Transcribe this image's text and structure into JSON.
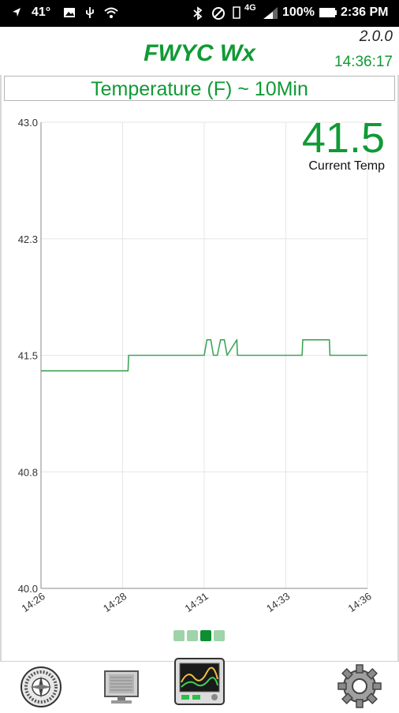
{
  "status_bar": {
    "temperature": "41°",
    "battery_percent": "100%",
    "time": "2:36 PM",
    "network": "4G"
  },
  "header": {
    "title": "FWYC Wx",
    "version": "2.0.0",
    "clock": "14:36:17"
  },
  "chart_header": {
    "title": "Temperature (F) ~ 10Min"
  },
  "current": {
    "value": "41.5",
    "label": "Current Temp"
  },
  "colors": {
    "accent": "#109a35",
    "line": "#3fa55a",
    "grid": "#e6e6e6"
  },
  "chart_data": {
    "type": "line",
    "title": "Temperature (F) ~ 10Min",
    "xlabel": "",
    "ylabel": "",
    "y_ticks": [
      "43.0",
      "42.3",
      "41.5",
      "40.8",
      "40.0"
    ],
    "ylim": [
      40.0,
      43.0
    ],
    "x_ticks": [
      "14:26",
      "14:28",
      "14:31",
      "14:33",
      "14:36"
    ],
    "xlim": [
      "14:26",
      "14:36"
    ],
    "grid": true,
    "series": [
      {
        "x": [
          "14:26:00",
          "14:28:40",
          "14:28:41",
          "14:31:00",
          "14:31:05",
          "14:31:12",
          "14:31:17",
          "14:31:24",
          "14:31:30",
          "14:31:37",
          "14:31:42",
          "14:32:00",
          "14:32:01",
          "14:34:00",
          "14:34:01",
          "14:34:50",
          "14:34:51",
          "14:36:00"
        ],
        "values": [
          41.4,
          41.4,
          41.5,
          41.5,
          41.6,
          41.6,
          41.5,
          41.5,
          41.6,
          41.6,
          41.5,
          41.6,
          41.5,
          41.5,
          41.6,
          41.6,
          41.5,
          41.5
        ]
      }
    ]
  },
  "page_indicator": {
    "count": 4,
    "active_index": 2
  },
  "nav": {
    "items": [
      {
        "icon": "compass-dial-icon"
      },
      {
        "icon": "monitor-data-icon"
      },
      {
        "icon": "chart-monitor-icon"
      },
      {
        "icon": "gear-icon"
      }
    ]
  }
}
